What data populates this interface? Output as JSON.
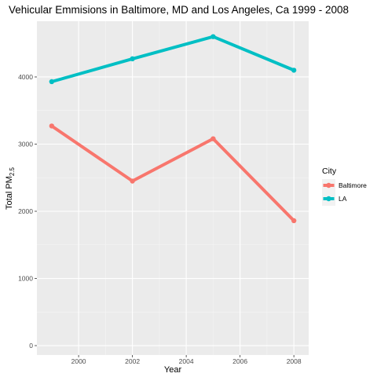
{
  "chart_data": {
    "type": "line",
    "title": "Vehicular Emmisions in Baltimore, MD and Los Angeles, Ca 1999 - 2008",
    "xlabel": "Year",
    "ylabel_main": "Total PM",
    "ylabel_sub": "2.5",
    "x": [
      1999,
      2002,
      2005,
      2008
    ],
    "xlim": [
      1998.45,
      2008.55
    ],
    "ylim": [
      -140,
      4830
    ],
    "x_ticks": [
      2000,
      2002,
      2004,
      2006,
      2008
    ],
    "y_ticks": [
      0,
      1000,
      2000,
      3000,
      4000
    ],
    "grid": true,
    "legend_title": "City",
    "legend_position": "right",
    "series": [
      {
        "name": "Baltimore",
        "color": "#F8766D",
        "values": [
          3270,
          2450,
          3080,
          1860
        ]
      },
      {
        "name": "LA",
        "color": "#00BFC4",
        "values": [
          3930,
          4270,
          4600,
          4100
        ]
      }
    ]
  }
}
